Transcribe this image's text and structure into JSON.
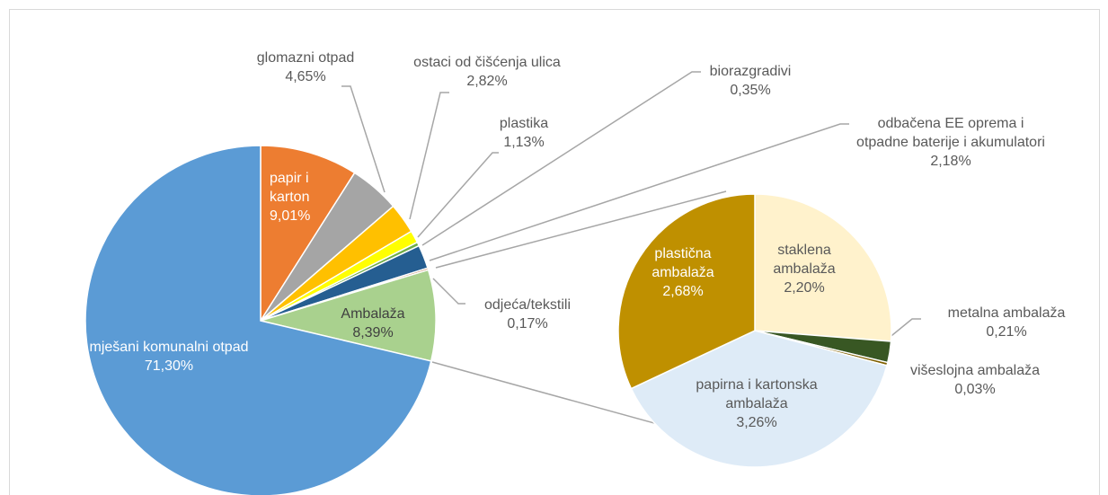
{
  "chart_data": {
    "type": "pie_of_pie",
    "categories": [
      "papir i karton",
      "glomazni otpad",
      "ostaci od čišćenja ulica",
      "plastika",
      "biorazgradivi",
      "odbačena EE oprema i otpadne baterije i akumulatori",
      "odjeća/tekstili",
      "Ambalaža",
      "mješani komunalni otpad"
    ],
    "values": [
      9.01,
      4.65,
      2.82,
      1.13,
      0.35,
      2.18,
      0.17,
      8.39,
      71.3
    ],
    "value_labels": [
      "9,01%",
      "4,65%",
      "2,82%",
      "1,13%",
      "0,35%",
      "2,18%",
      "0,17%",
      "8,39%",
      "71,30%"
    ],
    "colors": [
      "#ed7d31",
      "#a5a5a5",
      "#ffc000",
      "#ffff00",
      "#70ad47",
      "#255e91",
      "#9e480e",
      "#a9d18e",
      "#5b9bd5"
    ],
    "secondary": {
      "categories": [
        "staklena ambalaža",
        "metalna ambalaža",
        "višeslojna ambalaža",
        "papirna i kartonska ambalaža",
        "plastična ambalaža"
      ],
      "values": [
        2.2,
        0.21,
        0.03,
        3.26,
        2.68
      ],
      "value_labels": [
        "2,20%",
        "0,21%",
        "0,03%",
        "3,26%",
        "2,68%"
      ],
      "colors": [
        "#fff2cc",
        "#385723",
        "#7f6000",
        "#deebf7",
        "#bf9000"
      ]
    }
  }
}
